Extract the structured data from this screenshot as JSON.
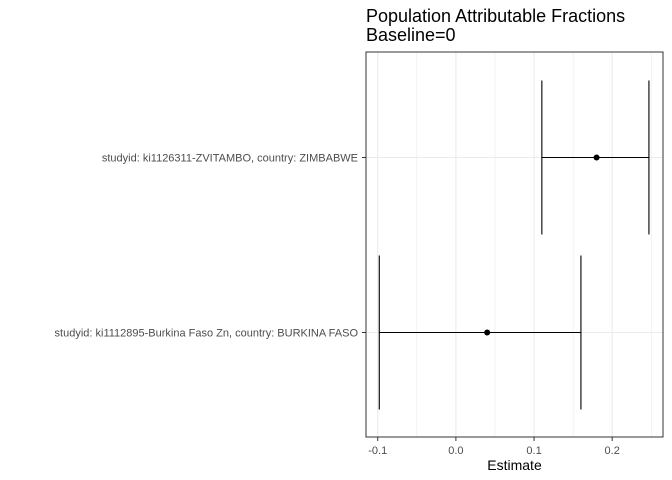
{
  "chart_data": {
    "type": "errorbar",
    "title": "Population Attributable Fractions",
    "subtitle": "Baseline=0",
    "xlabel": "Estimate",
    "ylabel": "",
    "xlim": [
      -0.115,
      0.265
    ],
    "xticks": [
      -0.1,
      0.0,
      0.1,
      0.2
    ],
    "xtick_labels": [
      "-0.1",
      "0.0",
      "0.1",
      "0.2"
    ],
    "grid": true,
    "theme": "bw",
    "series": [
      {
        "category": "studyid: ki1126311-ZVITAMBO, country: ZIMBABWE",
        "estimate": 0.18,
        "lower": 0.11,
        "upper": 0.247
      },
      {
        "category": "studyid: ki1112895-Burkina Faso Zn, country: BURKINA FASO",
        "estimate": 0.04,
        "lower": -0.098,
        "upper": 0.16
      }
    ],
    "colors": {
      "mark": "#000000",
      "grid": "#ebebeb",
      "panel_border": "#333333",
      "text": "#4d4d4d"
    }
  }
}
